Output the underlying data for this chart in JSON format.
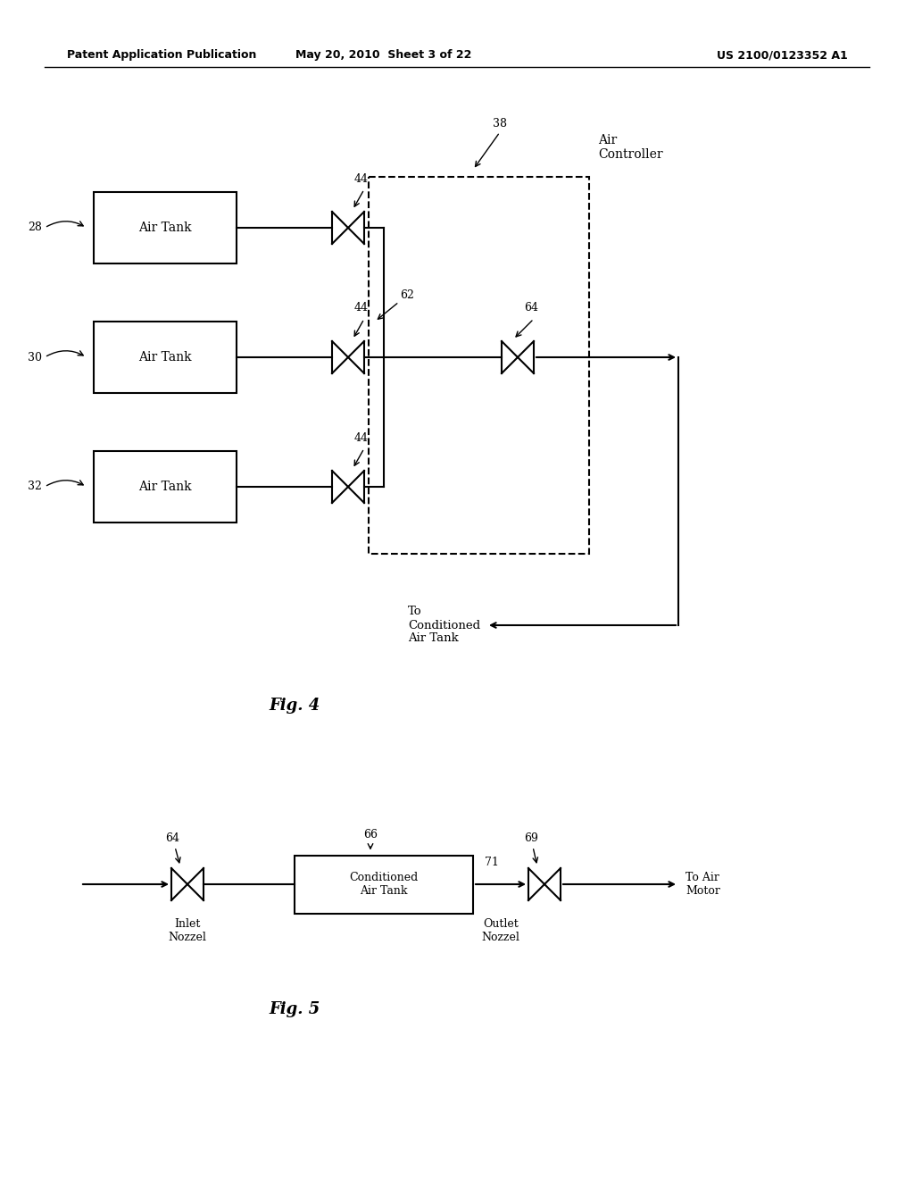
{
  "bg_color": "#ffffff",
  "header_left": "Patent Application Publication",
  "header_mid": "May 20, 2010  Sheet 3 of 22",
  "header_right": "US 2100/0123352 A1",
  "fig4_label": "Fig. 4",
  "fig5_label": "Fig. 5"
}
